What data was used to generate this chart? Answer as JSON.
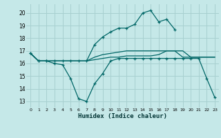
{
  "title": "",
  "xlabel": "Humidex (Indice chaleur)",
  "ylabel": "",
  "background_color": "#c5e8e8",
  "grid_color": "#a8d0d0",
  "line_color": "#006666",
  "xlim": [
    -0.5,
    23.5
  ],
  "ylim": [
    12.5,
    20.7
  ],
  "yticks": [
    13,
    14,
    15,
    16,
    17,
    18,
    19,
    20
  ],
  "xticks": [
    0,
    1,
    2,
    3,
    4,
    5,
    6,
    7,
    8,
    9,
    10,
    11,
    12,
    13,
    14,
    15,
    16,
    17,
    18,
    19,
    20,
    21,
    22,
    23
  ],
  "xtick_labels": [
    "0",
    "1",
    "2",
    "3",
    "4",
    "5",
    "6",
    "7",
    "8",
    "9",
    "10",
    "11",
    "12",
    "13",
    "14",
    "15",
    "16",
    "17",
    "18",
    "19",
    "20",
    "21",
    "22",
    "23"
  ],
  "series": [
    {
      "x": [
        0,
        1,
        2,
        3,
        4,
        5,
        6,
        7,
        8,
        9,
        10,
        11,
        12,
        13,
        14,
        15,
        16,
        17,
        18,
        19,
        20,
        21,
        22,
        23
      ],
      "y": [
        16.8,
        16.2,
        16.2,
        16.2,
        16.2,
        16.2,
        16.2,
        16.2,
        17.5,
        18.1,
        18.5,
        18.8,
        18.8,
        19.1,
        20.0,
        20.2,
        19.3,
        19.5,
        18.7,
        null,
        null,
        null,
        null,
        null
      ],
      "has_markers": true
    },
    {
      "x": [
        0,
        1,
        2,
        3,
        4,
        5,
        6,
        7,
        8,
        9,
        10,
        11,
        12,
        13,
        14,
        15,
        16,
        17,
        18,
        19,
        20,
        21,
        22,
        23
      ],
      "y": [
        16.8,
        16.2,
        16.2,
        16.0,
        15.9,
        14.8,
        13.2,
        13.0,
        14.4,
        15.2,
        16.2,
        16.4,
        16.4,
        16.4,
        16.4,
        16.4,
        16.4,
        16.4,
        16.4,
        16.4,
        16.4,
        16.4,
        14.8,
        13.3
      ],
      "has_markers": true
    },
    {
      "x": [
        0,
        1,
        2,
        3,
        4,
        5,
        6,
        7,
        8,
        9,
        10,
        11,
        12,
        13,
        14,
        15,
        16,
        17,
        18,
        19,
        20,
        21,
        22,
        23
      ],
      "y": [
        16.8,
        16.2,
        16.2,
        16.2,
        16.2,
        16.2,
        16.2,
        16.2,
        16.3,
        16.4,
        16.5,
        16.5,
        16.6,
        16.6,
        16.6,
        16.6,
        16.7,
        17.0,
        17.0,
        16.5,
        16.5,
        16.5,
        16.5,
        16.5
      ],
      "has_markers": false
    },
    {
      "x": [
        0,
        1,
        2,
        3,
        4,
        5,
        6,
        7,
        8,
        9,
        10,
        11,
        12,
        13,
        14,
        15,
        16,
        17,
        18,
        19,
        20,
        21,
        22,
        23
      ],
      "y": [
        16.8,
        16.2,
        16.2,
        16.2,
        16.2,
        16.2,
        16.2,
        16.2,
        16.5,
        16.7,
        16.8,
        16.9,
        17.0,
        17.0,
        17.0,
        17.0,
        17.0,
        17.0,
        17.0,
        17.0,
        16.5,
        16.5,
        16.5,
        16.5
      ],
      "has_markers": false
    }
  ]
}
